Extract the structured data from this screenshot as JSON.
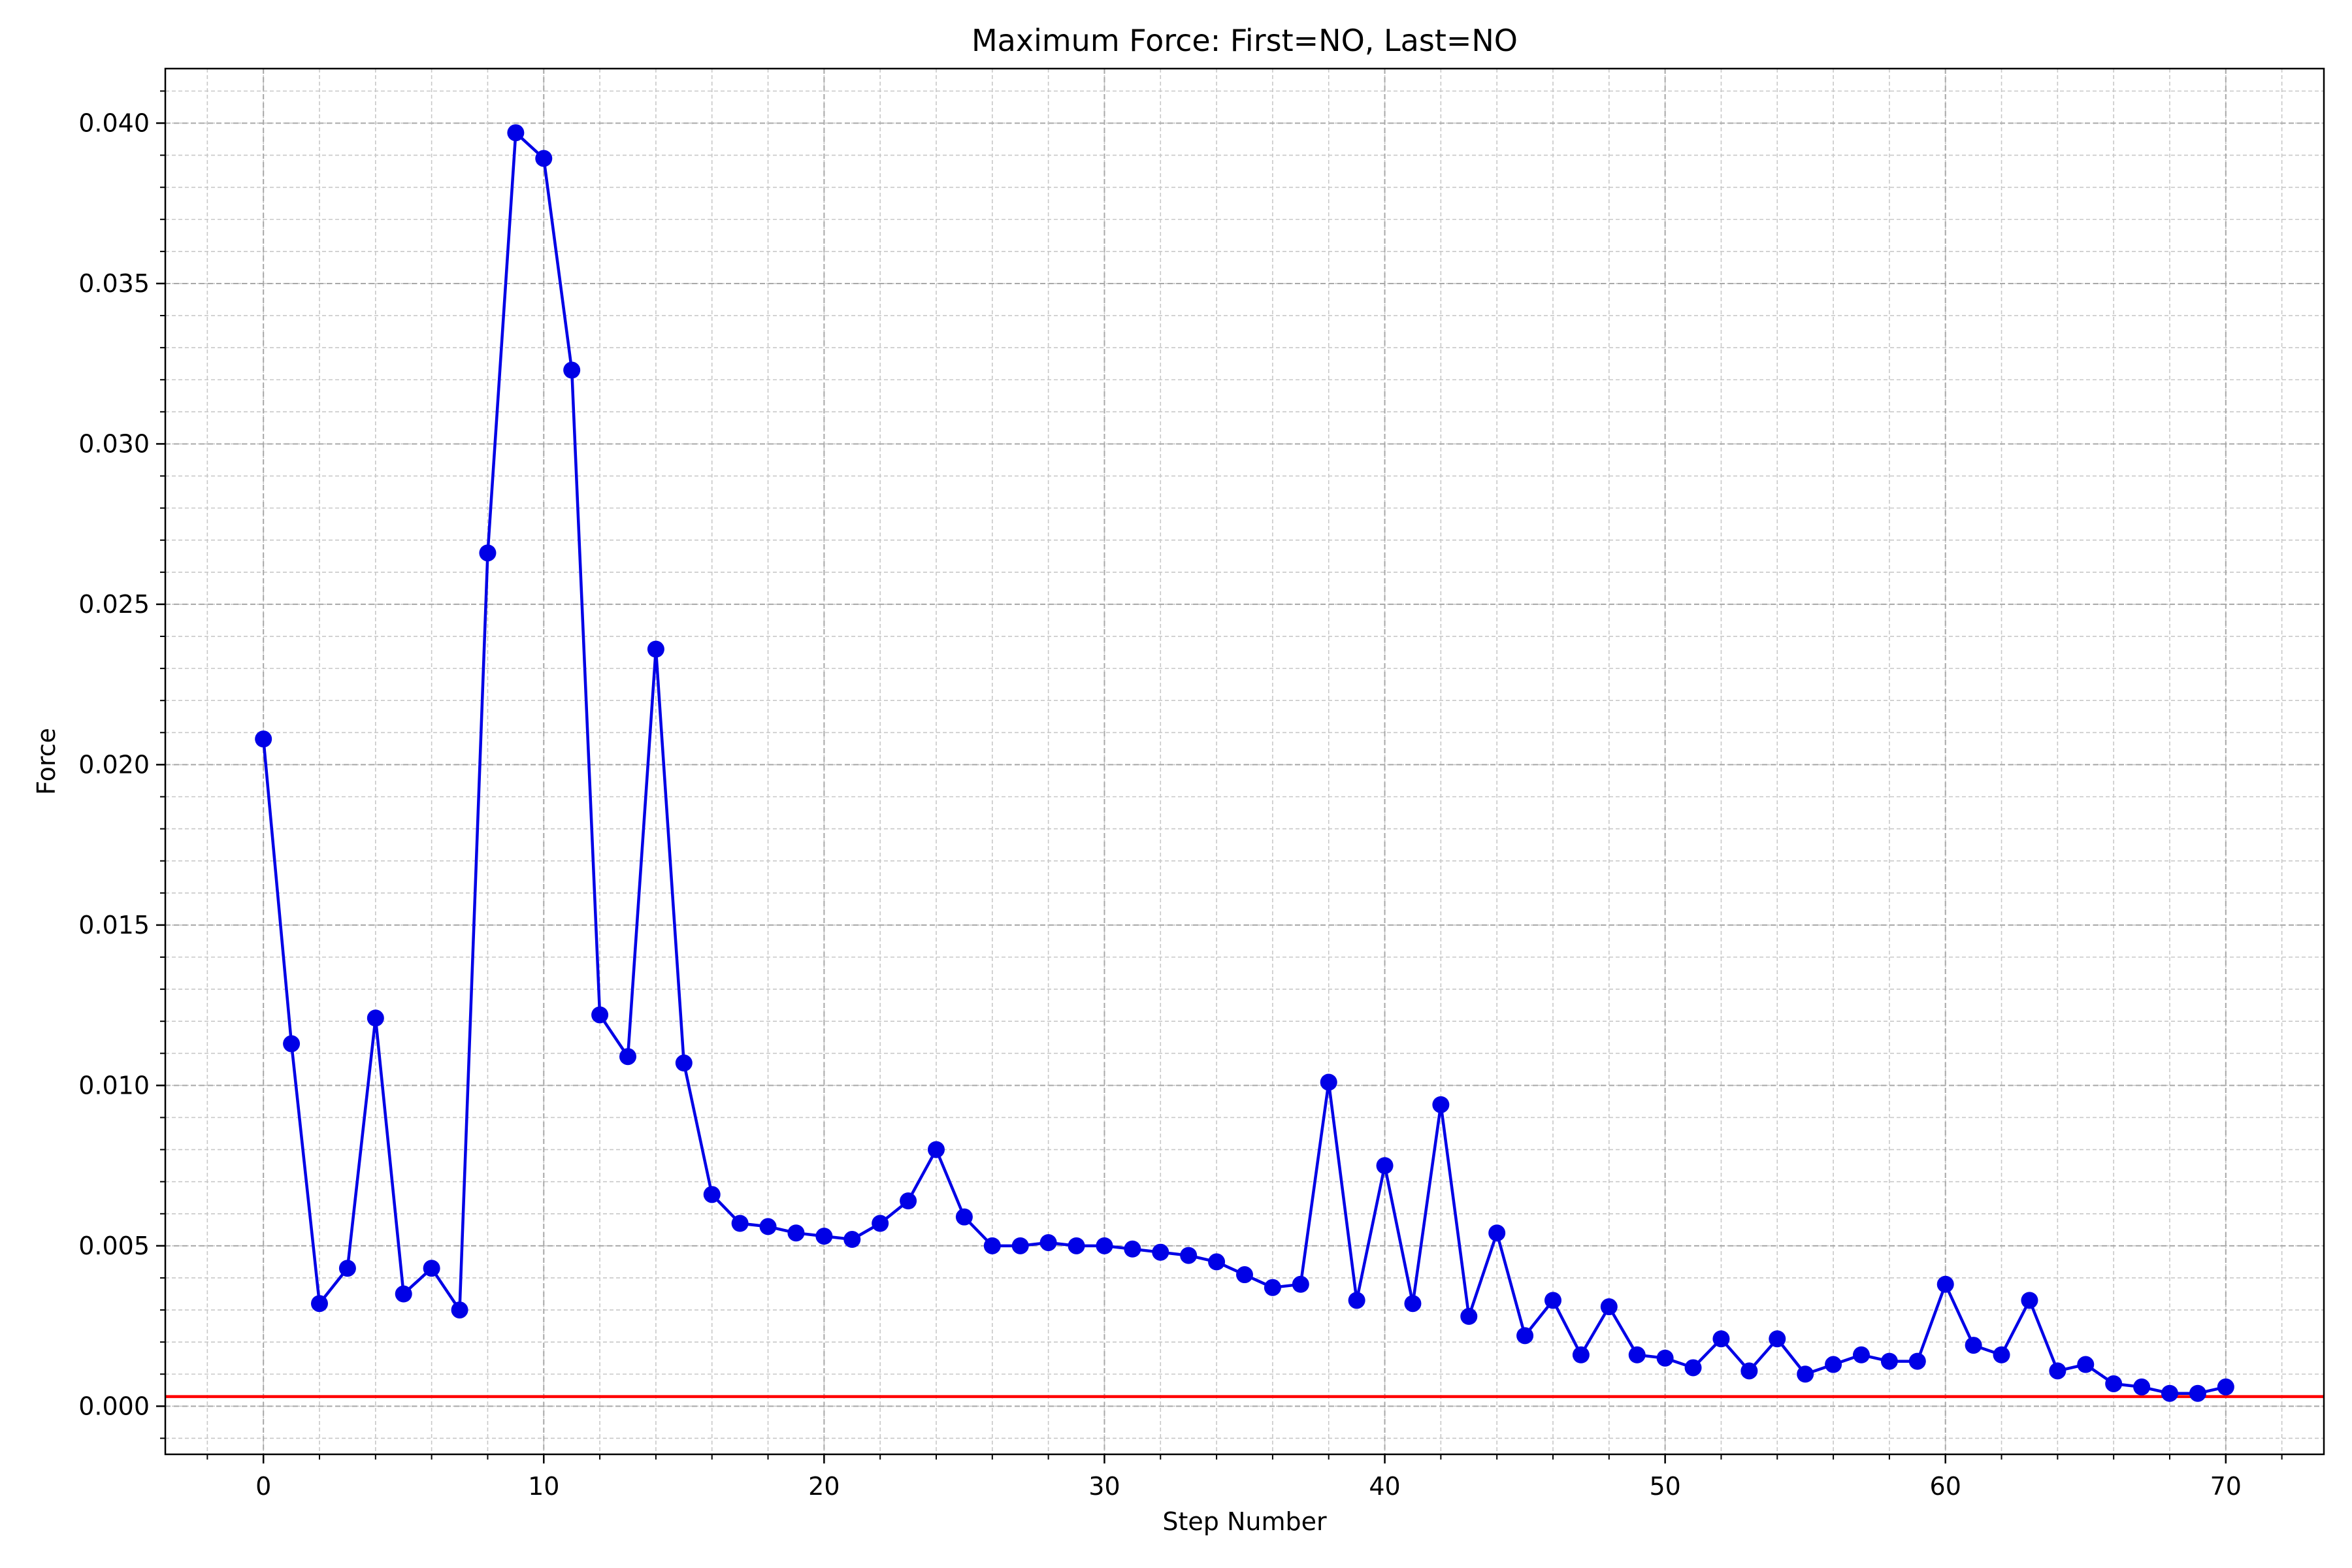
{
  "chart_data": {
    "type": "line",
    "title": "Maximum Force: First=NO, Last=NO",
    "xlabel": "Step Number",
    "ylabel": "Force",
    "xlim": [
      -3.5,
      73.5
    ],
    "ylim": [
      -0.0015,
      0.0417
    ],
    "xticks": [
      0,
      10,
      20,
      30,
      40,
      50,
      60,
      70
    ],
    "xtick_labels": [
      "0",
      "10",
      "20",
      "30",
      "40",
      "50",
      "60",
      "70"
    ],
    "yticks": [
      0.0,
      0.005,
      0.01,
      0.015,
      0.02,
      0.025,
      0.03,
      0.035,
      0.04
    ],
    "ytick_labels": [
      "0.000",
      "0.005",
      "0.010",
      "0.015",
      "0.020",
      "0.025",
      "0.030",
      "0.035",
      "0.040"
    ],
    "x_minor_step": 2,
    "y_minor_step": 0.001,
    "grid": true,
    "grid_minor": true,
    "series": [
      {
        "color": "#0000e6",
        "marker": "circle",
        "x": [
          0,
          1,
          2,
          3,
          4,
          5,
          6,
          7,
          8,
          9,
          10,
          11,
          12,
          13,
          14,
          15,
          16,
          17,
          18,
          19,
          20,
          21,
          22,
          23,
          24,
          25,
          26,
          27,
          28,
          29,
          30,
          31,
          32,
          33,
          34,
          35,
          36,
          37,
          38,
          39,
          40,
          41,
          42,
          43,
          44,
          45,
          46,
          47,
          48,
          49,
          50,
          51,
          52,
          53,
          54,
          55,
          56,
          57,
          58,
          59,
          60,
          61,
          62,
          63,
          64,
          65,
          66,
          67,
          68,
          69,
          70
        ],
        "values": [
          0.0208,
          0.0113,
          0.0032,
          0.0043,
          0.0121,
          0.0035,
          0.0043,
          0.003,
          0.0266,
          0.0397,
          0.0389,
          0.0323,
          0.0122,
          0.0109,
          0.0236,
          0.0107,
          0.0066,
          0.0057,
          0.0056,
          0.0054,
          0.0053,
          0.0052,
          0.0057,
          0.0064,
          0.008,
          0.0059,
          0.005,
          0.005,
          0.0051,
          0.005,
          0.005,
          0.0049,
          0.0048,
          0.0047,
          0.0045,
          0.0041,
          0.0037,
          0.0038,
          0.0101,
          0.0033,
          0.0075,
          0.0032,
          0.0094,
          0.0028,
          0.0054,
          0.0022,
          0.0033,
          0.0016,
          0.0031,
          0.0016,
          0.0015,
          0.0012,
          0.0021,
          0.0011,
          0.0021,
          0.001,
          0.0013,
          0.0016,
          0.0014,
          0.0014,
          0.0038,
          0.0019,
          0.0016,
          0.0033,
          0.0011,
          0.0013,
          0.0007,
          0.0006,
          0.0004,
          0.0004,
          0.0006
        ]
      }
    ],
    "reference_line": {
      "y": 0.0003,
      "color": "#ff0000"
    }
  }
}
